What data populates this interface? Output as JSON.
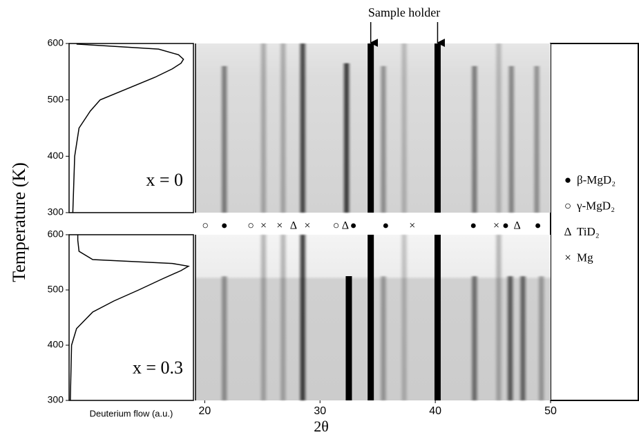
{
  "chart_data": [
    {
      "type": "line",
      "annotation": "x = 0",
      "ylabel": "Temperature (K)",
      "ylim": [
        300,
        600
      ],
      "yticks": [
        300,
        400,
        500,
        600
      ],
      "xlim": [
        0,
        1
      ],
      "series": [
        {
          "color": "#000000",
          "x": [
            0.03,
            0.045,
            0.08,
            0.17,
            0.25,
            0.47,
            0.69,
            0.83,
            0.9,
            0.92,
            0.88,
            0.72,
            0.28,
            0.06
          ],
          "values": [
            300,
            400,
            450,
            480,
            500,
            520,
            540,
            555,
            565,
            572,
            580,
            590,
            596,
            599
          ]
        }
      ]
    },
    {
      "type": "line",
      "annotation": "x = 0.3",
      "xlabel": "Deuterium flow (a.u.)",
      "ylim": [
        300,
        600
      ],
      "yticks": [
        300,
        400,
        500,
        600
      ],
      "xlim": [
        0,
        1
      ],
      "series": [
        {
          "color": "#000000",
          "x": [
            0.01,
            0.02,
            0.06,
            0.19,
            0.36,
            0.56,
            0.75,
            0.9,
            0.96,
            0.83,
            0.19,
            0.08,
            0.07,
            0.07
          ],
          "values": [
            300,
            400,
            430,
            460,
            480,
            500,
            520,
            535,
            543,
            548,
            555,
            570,
            590,
            600
          ]
        }
      ]
    },
    {
      "type": "diffraction",
      "xlim": [
        19.2,
        50
      ],
      "ylim": [
        300,
        600
      ],
      "annotation": "Sample holder",
      "arrows_x": [
        34.4,
        40.2
      ],
      "peaks": {
        "x": [
          21.7,
          25.1,
          26.8,
          28.5,
          32.3,
          34.4,
          35.5,
          37.3,
          40.2,
          43.4,
          45.5,
          46.6,
          48.8
        ],
        "values": [
          0.45,
          0.25,
          0.25,
          0.7,
          0.75,
          1,
          0.35,
          0.2,
          1,
          0.45,
          0.2,
          0.4,
          0.35
        ],
        "tmax": [
          560,
          600,
          600,
          600,
          565,
          600,
          560,
          600,
          600,
          560,
          600,
          560,
          560
        ]
      }
    },
    {
      "type": "diffraction",
      "xlim": [
        19.2,
        50
      ],
      "ylim": [
        300,
        600
      ],
      "xlabel": "2θ",
      "xticks": [
        20,
        30,
        40,
        50
      ],
      "peaks": {
        "x": [
          21.7,
          25.1,
          26.8,
          28.5,
          32.5,
          34.4,
          35.5,
          37.3,
          40.2,
          43.4,
          45.5,
          46.5,
          47.6,
          49.2
        ],
        "values": [
          0.35,
          0.25,
          0.25,
          0.75,
          1,
          1,
          0.3,
          0.2,
          1,
          0.5,
          0.25,
          0.6,
          0.55,
          0.3
        ],
        "tmax": [
          525,
          600,
          600,
          600,
          525,
          600,
          525,
          600,
          600,
          525,
          600,
          525,
          525,
          525
        ]
      },
      "phases": [
        {
          "name": "β-MgD₂",
          "symbol": "●",
          "x": [
            21.7,
            32.9,
            35.7,
            43.3,
            46.1,
            48.9
          ]
        },
        {
          "name": "γ-MgD₂",
          "symbol": "○",
          "x": [
            20.05,
            24.0,
            31.4
          ]
        },
        {
          "name": "TiD₂",
          "symbol": "Δ",
          "x": [
            27.7,
            32.2,
            47.1
          ]
        },
        {
          "name": "Mg",
          "symbol": "×",
          "x": [
            25.1,
            26.5,
            28.9,
            38.0,
            45.3
          ]
        }
      ]
    }
  ]
}
